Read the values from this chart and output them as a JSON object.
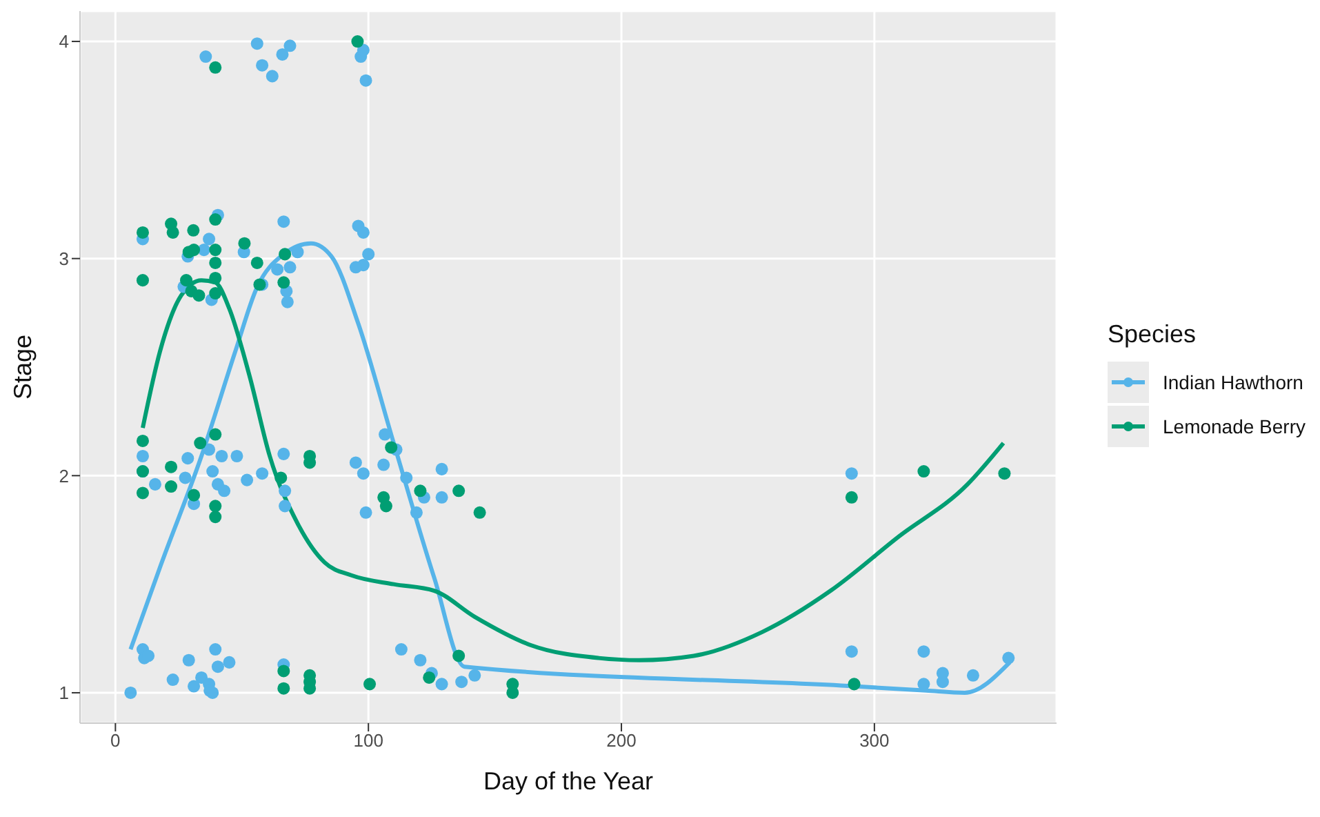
{
  "chart_data": {
    "type": "scatter",
    "xlabel": "Day of the Year",
    "ylabel": "Stage",
    "legend_title": "Species",
    "legend": "right",
    "grid": true,
    "marker": "circle",
    "xlim": [
      -14,
      372
    ],
    "ylim": [
      0.86,
      4.14
    ],
    "xticks": [
      0,
      100,
      200,
      300
    ],
    "yticks": [
      1,
      2,
      3,
      4
    ],
    "series": [
      {
        "name": "Indian Hawthorn",
        "color": "#56b4e9",
        "x": [
          35.7,
          56,
          58,
          62,
          66,
          69,
          97,
          98,
          99,
          10.8,
          37,
          40.5,
          28.6,
          27,
          38,
          50.8,
          58,
          66.5,
          67.6,
          69,
          72,
          68,
          96,
          98,
          100,
          98,
          95,
          64,
          35,
          10.8,
          10.8,
          15.7,
          28.6,
          27.6,
          31,
          37,
          38.4,
          40.5,
          42,
          43,
          48,
          52,
          58,
          66.5,
          67,
          67,
          95,
          98,
          99,
          106.5,
          106,
          111,
          115,
          119,
          129,
          129,
          122,
          291,
          6,
          10.8,
          11.4,
          13,
          22.7,
          29,
          31,
          34,
          37,
          37.3,
          38.4,
          39.5,
          40.5,
          45,
          66.5,
          113,
          120.5,
          125,
          129,
          136.8,
          142,
          291,
          319.5,
          327,
          327,
          319.5,
          339,
          353
        ],
        "values": [
          3.93,
          3.99,
          3.89,
          3.84,
          3.94,
          3.98,
          3.93,
          3.96,
          3.82,
          3.09,
          3.09,
          3.2,
          3.01,
          2.87,
          2.81,
          3.03,
          2.88,
          3.17,
          2.85,
          2.96,
          3.03,
          2.8,
          3.15,
          3.12,
          3.02,
          2.97,
          2.96,
          2.95,
          3.04,
          2.09,
          2.02,
          1.96,
          2.08,
          1.99,
          1.87,
          2.12,
          2.02,
          1.96,
          2.09,
          1.93,
          2.09,
          1.98,
          2.01,
          2.1,
          1.93,
          1.86,
          2.06,
          2.01,
          1.83,
          2.19,
          2.05,
          2.12,
          1.99,
          1.83,
          2.03,
          1.9,
          1.9,
          2.01,
          1.0,
          1.2,
          1.16,
          1.17,
          1.06,
          1.15,
          1.03,
          1.07,
          1.04,
          1.01,
          1.0,
          1.2,
          1.12,
          1.14,
          1.13,
          1.2,
          1.15,
          1.09,
          1.04,
          1.05,
          1.08,
          1.19,
          1.19,
          1.09,
          1.05,
          1.04,
          1.08,
          1.16
        ]
      },
      {
        "name": "Lemonade Berry",
        "color": "#009e73",
        "x": [
          39.5,
          95.7,
          10.8,
          10.8,
          22,
          22.7,
          30.8,
          29,
          31,
          28,
          30,
          33,
          39.5,
          39.5,
          39.5,
          39.5,
          39.5,
          51,
          57,
          56,
          66.5,
          67,
          10.8,
          10.8,
          10.8,
          22,
          22,
          31,
          33.5,
          39.5,
          39.5,
          39.5,
          65.4,
          76.8,
          76.8,
          109,
          106,
          107,
          120.5,
          135.7,
          144,
          291,
          319.5,
          351.4,
          66.5,
          66.5,
          76.8,
          76.8,
          76.8,
          100.5,
          124,
          135.7,
          157,
          157,
          292
        ],
        "values": [
          3.88,
          4.0,
          3.12,
          2.9,
          3.16,
          3.12,
          3.13,
          3.03,
          3.04,
          2.9,
          2.85,
          2.83,
          3.18,
          3.04,
          2.98,
          2.91,
          2.84,
          3.07,
          2.88,
          2.98,
          2.89,
          3.02,
          2.16,
          2.02,
          1.92,
          2.04,
          1.95,
          1.91,
          2.15,
          2.19,
          1.86,
          1.81,
          1.99,
          2.09,
          2.06,
          2.13,
          1.9,
          1.86,
          1.93,
          1.93,
          1.83,
          1.9,
          2.02,
          2.01,
          1.1,
          1.02,
          1.08,
          1.05,
          1.02,
          1.04,
          1.07,
          1.17,
          1.04,
          1.0,
          1.04
        ]
      },
      {
        "type": "line",
        "color": "#56b4e9",
        "marker": "none",
        "x": [
          6,
          18,
          34,
          47.6,
          55.7,
          66.5,
          77.3,
          85.4,
          96,
          110,
          126,
          138,
          292,
          320.5,
          335.7,
          353.5
        ],
        "values": [
          1.2,
          1.59,
          2.09,
          2.58,
          2.86,
          3.02,
          3.07,
          3.01,
          2.7,
          2.15,
          1.53,
          1.12,
          1.03,
          1.01,
          1.0,
          1.14
        ]
      },
      {
        "type": "line",
        "color": "#009e73",
        "marker": "none",
        "x": [
          10.8,
          17.8,
          26,
          34,
          39.5,
          45,
          53,
          61,
          72,
          82.7,
          93.5,
          110,
          126,
          142,
          164,
          191,
          207,
          228.6,
          255.7,
          282.7,
          309.7,
          336.8,
          351
        ],
        "values": [
          2.22,
          2.58,
          2.83,
          2.9,
          2.89,
          2.77,
          2.46,
          2.09,
          1.78,
          1.6,
          1.54,
          1.5,
          1.47,
          1.35,
          1.22,
          1.16,
          1.15,
          1.17,
          1.28,
          1.47,
          1.72,
          1.96,
          2.15
        ]
      }
    ]
  }
}
